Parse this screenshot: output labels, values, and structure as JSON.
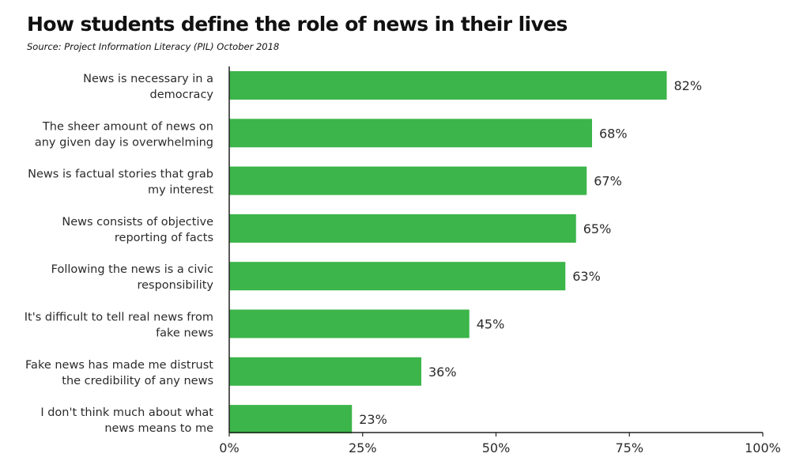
{
  "chart_data": {
    "type": "bar",
    "orientation": "horizontal",
    "title": "How students define the role of news in their lives",
    "subtitle": "Source: Project Information Literacy (PIL) October 2018",
    "categories": [
      [
        "News is necessary in a",
        "democracy"
      ],
      [
        "The sheer amount of news on",
        "any given day is overwhelming"
      ],
      [
        "News is factual stories that grab",
        "my interest"
      ],
      [
        "News consists of  objective",
        "reporting of facts"
      ],
      [
        "Following the news is a civic",
        "responsibility"
      ],
      [
        "It's difficult to tell  real news from",
        "fake news"
      ],
      [
        "Fake news has made me distrust",
        "the credibility of any news"
      ],
      [
        "I don't think much about what",
        "news means to me"
      ]
    ],
    "values": [
      82,
      68,
      67,
      65,
      63,
      45,
      36,
      23
    ],
    "value_labels": [
      "82%",
      "68%",
      "67%",
      "65%",
      "63%",
      "45%",
      "36%",
      "23%"
    ],
    "xlim": [
      0,
      100
    ],
    "xticks": [
      0,
      25,
      50,
      75,
      100
    ],
    "xtick_labels": [
      "0%",
      "25%",
      "50%",
      "75%",
      "100%"
    ],
    "bar_color": "#3cb54a",
    "axis_color": "#222222",
    "grid": false,
    "xlabel": "",
    "ylabel": ""
  }
}
